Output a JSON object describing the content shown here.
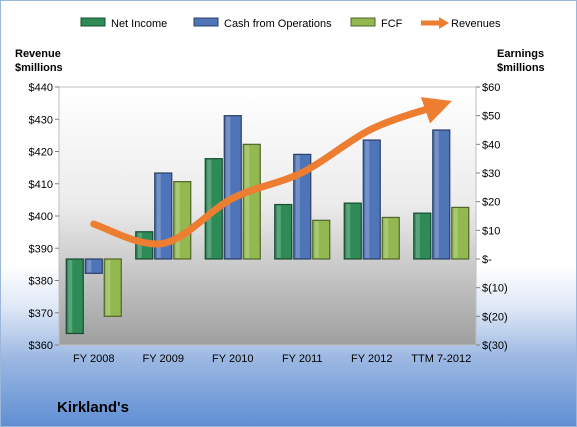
{
  "chart_data": {
    "type": "bar",
    "title": "",
    "company": "Kirkland's",
    "categories": [
      "FY 2008",
      "FY 2009",
      "FY 2010",
      "FY 2011",
      "FY 2012",
      "TTM 7-2012"
    ],
    "left_axis": {
      "label_line1": "Revenue",
      "label_line2": "$millions",
      "ylim": [
        360,
        440
      ],
      "ticks": [
        360,
        370,
        380,
        390,
        400,
        410,
        420,
        430,
        440
      ],
      "tick_labels": [
        "$360",
        "$370",
        "$380",
        "$390",
        "$400",
        "$410",
        "$420",
        "$430",
        "$440"
      ]
    },
    "right_axis": {
      "label_line1": "Earnings",
      "label_line2": "$millions",
      "ylim": [
        -30,
        60
      ],
      "ticks": [
        -30,
        -20,
        -10,
        0,
        10,
        20,
        30,
        40,
        50,
        60
      ],
      "tick_labels": [
        "$(30)",
        "$(20)",
        "$(10)",
        "$-",
        "$10",
        "$20",
        "$30",
        "$40",
        "$50",
        "$60"
      ]
    },
    "series": [
      {
        "name": "Net Income",
        "type": "bar",
        "axis": "right",
        "color": "#2e8b57",
        "values": [
          -26,
          9.5,
          35,
          19,
          19.5,
          16
        ]
      },
      {
        "name": "Cash from Operations",
        "type": "bar",
        "axis": "right",
        "color": "#4f74b8",
        "values": [
          -5,
          30,
          50,
          36.5,
          41.5,
          45
        ]
      },
      {
        "name": "FCF",
        "type": "bar",
        "axis": "right",
        "color": "#92b84f",
        "values": [
          -20,
          27,
          40,
          13.5,
          14.5,
          18
        ]
      },
      {
        "name": "Revenues",
        "type": "line",
        "axis": "left",
        "color": "#ed7d31",
        "values": [
          397.5,
          391.5,
          405.5,
          413.5,
          427,
          434.5
        ]
      }
    ],
    "grid": false,
    "legend_position": "top"
  }
}
